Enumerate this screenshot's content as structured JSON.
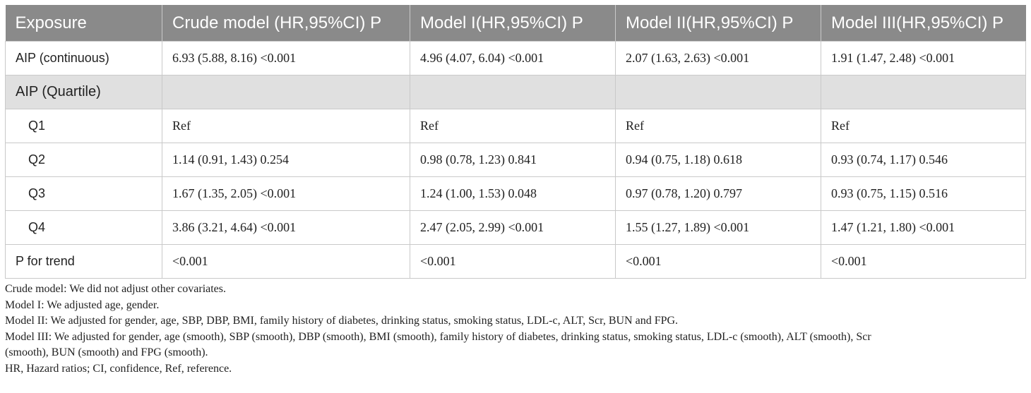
{
  "table": {
    "headers": [
      "Exposure",
      "Crude model (HR,95%CI) P",
      "Model I(HR,95%CI) P",
      "Model II(HR,95%CI) P",
      "Model III(HR,95%CI) P"
    ],
    "rows": [
      {
        "label": "AIP (continuous)",
        "values": [
          "6.93 (5.88, 8.16) <0.001",
          "4.96 (4.07, 6.04) <0.001",
          "2.07 (1.63, 2.63) <0.001",
          "1.91 (1.47, 2.48) <0.001"
        ]
      },
      {
        "label": "AIP (Quartile)",
        "values": [
          "",
          "",
          "",
          ""
        ]
      },
      {
        "label": "Q1",
        "values": [
          "Ref",
          "Ref",
          "Ref",
          "Ref"
        ]
      },
      {
        "label": "Q2",
        "values": [
          "1.14 (0.91, 1.43) 0.254",
          "0.98 (0.78, 1.23) 0.841",
          "0.94 (0.75, 1.18) 0.618",
          "0.93 (0.74, 1.17) 0.546"
        ]
      },
      {
        "label": "Q3",
        "values": [
          "1.67 (1.35, 2.05) <0.001",
          "1.24 (1.00, 1.53) 0.048",
          "0.97 (0.78, 1.20) 0.797",
          "0.93 (0.75, 1.15) 0.516"
        ]
      },
      {
        "label": "Q4",
        "values": [
          "3.86 (3.21, 4.64) <0.001",
          "2.47 (2.05, 2.99) <0.001",
          "1.55 (1.27, 1.89) <0.001",
          "1.47 (1.21, 1.80) <0.001"
        ]
      },
      {
        "label": "P for trend",
        "values": [
          "<0.001",
          "<0.001",
          "<0.001",
          "<0.001"
        ]
      }
    ]
  },
  "footnotes": {
    "crude": "Crude model: We did not adjust other covariates.",
    "model1": "Model I: We adjusted age, gender.",
    "model2": "Model II: We adjusted for gender, age, SBP, DBP, BMI, family history of diabetes, drinking status, smoking status, LDL-c, ALT, Scr, BUN and FPG.",
    "model3_line1": "Model III: We adjusted for gender, age (smooth), SBP (smooth), DBP (smooth), BMI (smooth), family history of diabetes, drinking status, smoking status, LDL-c (smooth), ALT (smooth), Scr",
    "model3_line2": "(smooth), BUN (smooth) and FPG (smooth).",
    "abbrev": "HR, Hazard ratios; CI, confidence, Ref, reference."
  },
  "colors": {
    "header_bg": "#8a8a8a",
    "section_bg": "#e0e0e0",
    "border": "#c9c9c9"
  }
}
